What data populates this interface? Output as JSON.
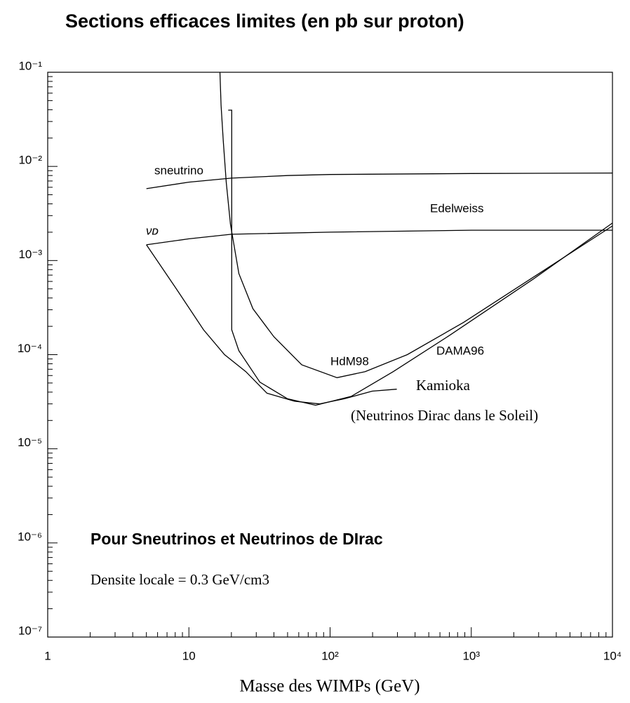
{
  "chart_data": {
    "type": "line",
    "title": "Sections efficaces limites (en pb sur proton)",
    "x_label": "Masse des WIMPs (GeV)",
    "xscale": "log",
    "yscale": "log",
    "xlim": [
      1,
      10000
    ],
    "ylim": [
      1e-07,
      0.1
    ],
    "xticks": [
      1,
      10,
      {
        "value": 100,
        "label": "10²"
      },
      {
        "value": 1000,
        "label": "10³"
      },
      {
        "value": 10000,
        "label": "10⁴"
      }
    ],
    "yticks": [
      {
        "value": 1e-07,
        "label": "10⁻⁷"
      },
      {
        "value": 1e-06,
        "label": "10⁻⁶"
      },
      {
        "value": 1e-05,
        "label": "10⁻⁵"
      },
      {
        "value": 0.0001,
        "label": "10⁻⁴"
      },
      {
        "value": 0.001,
        "label": "10⁻³"
      },
      {
        "value": 0.01,
        "label": "10⁻²"
      },
      {
        "value": 0.1,
        "label": "10⁻¹"
      }
    ],
    "color": "#000000",
    "series": [
      {
        "x": [
          5,
          10,
          20,
          50,
          100,
          1000,
          10000
        ],
        "values": [
          0.0058,
          0.0068,
          0.0075,
          0.008,
          0.0082,
          0.0084,
          0.0085
        ]
      },
      {
        "x": [
          5,
          10,
          20,
          100,
          1000,
          10000
        ],
        "values": [
          0.00147,
          0.0017,
          0.0019,
          0.002,
          0.0021,
          0.0021
        ]
      },
      {
        "x": [
          16.6,
          16.9,
          17.5,
          18.4,
          19.7,
          22.6,
          28.4,
          40,
          63,
          112,
          177,
          352,
          881,
          2770,
          10000
        ],
        "values": [
          0.1,
          0.0447,
          0.0189,
          0.00676,
          0.00242,
          0.000726,
          0.000308,
          0.000155,
          7.8e-05,
          5.7e-05,
          6.6e-05,
          0.0001,
          0.00022,
          0.00067,
          0.00233
        ]
      },
      {
        "x": [
          19,
          20.1,
          20.1,
          22.6,
          31.8,
          50,
          79,
          141,
          280,
          701,
          2770,
          10000
        ],
        "values": [
          0.0396,
          0.0396,
          0.000184,
          0.00011,
          5.1e-05,
          3.4e-05,
          2.9e-05,
          3.6e-05,
          6.6e-05,
          0.00016,
          0.00064,
          0.0025
        ]
      },
      {
        "x": [
          5,
          8.04,
          12.7,
          17.9,
          25.3,
          35.7,
          56,
          84,
          126,
          199,
          297
        ],
        "values": [
          0.00147,
          0.000515,
          0.000184,
          0.0001,
          6.6e-05,
          3.9e-05,
          3.2e-05,
          3e-05,
          3.4e-05,
          4.1e-05,
          4.3e-05
        ]
      }
    ],
    "annotations": [
      "sneutrino",
      "νᴅ",
      "Edelweiss",
      "HdM98",
      "DAMA96",
      "Kamioka",
      "(Neutrinos Dirac dans le Soleil)",
      "Pour Sneutrinos et Neutrinos de DIrac",
      "Densite locale = 0.3 GeV/cm3"
    ]
  }
}
